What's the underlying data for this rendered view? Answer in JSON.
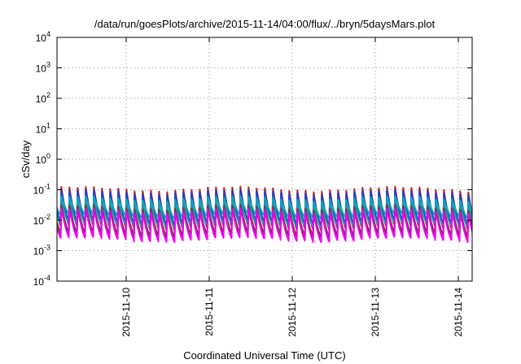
{
  "chart_data": {
    "type": "line",
    "title": "/data/run/goesPlots/archive/2015-11-14/04:00/flux/../bryn/5daysMars.plot",
    "xlabel": "Coordinated Universal Time (UTC)",
    "ylabel": "cSv/day",
    "y_scale": "log",
    "ylim": [
      0.0001,
      10000
    ],
    "y_ticks": [
      {
        "base": "10",
        "exp": "4"
      },
      {
        "base": "10",
        "exp": "3"
      },
      {
        "base": "10",
        "exp": "2"
      },
      {
        "base": "10",
        "exp": "1"
      },
      {
        "base": "10",
        "exp": "0"
      },
      {
        "base": "10",
        "exp": "-1"
      },
      {
        "base": "10",
        "exp": "-2"
      },
      {
        "base": "10",
        "exp": "-3"
      },
      {
        "base": "10",
        "exp": "-4"
      }
    ],
    "x_ticks": [
      "2015-11-10",
      "2015-11-11",
      "2015-11-12",
      "2015-11-13",
      "2015-11-14"
    ],
    "xlim": [
      "2015-11-09 04:00",
      "2015-11-14 04:00"
    ],
    "grid": true,
    "cycles_per_day": 10.2,
    "series": [
      {
        "color": "#c81e1e",
        "peak": 0.105,
        "trough": 0.0058
      },
      {
        "color": "#1f3fcf",
        "peak": 0.085,
        "trough": 0.0078
      },
      {
        "color": "#00aeb8",
        "peak": 0.052,
        "trough": 0.0135
      },
      {
        "color": "#2b8fb0",
        "peak": 0.038,
        "trough": 0.0068
      },
      {
        "color": "#6d3a3a",
        "peak": 0.026,
        "trough": 0.0034
      },
      {
        "color": "#ee00ee",
        "peak": 0.0205,
        "trough": 0.0024
      }
    ]
  }
}
